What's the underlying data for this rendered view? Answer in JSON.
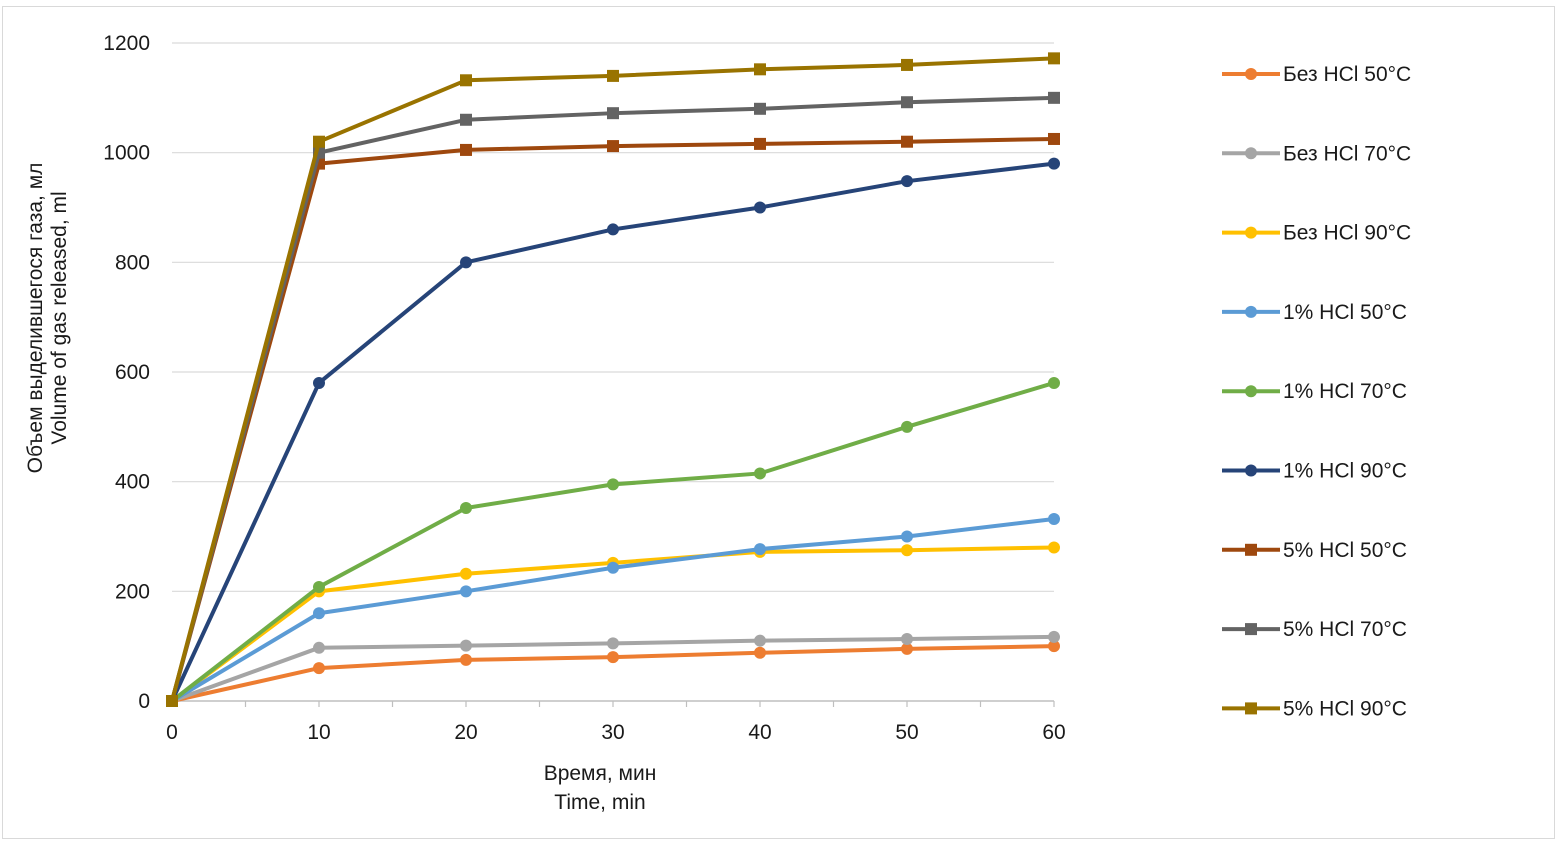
{
  "chart_data": {
    "type": "line",
    "title": "",
    "xlabel": [
      "Время, мин",
      "Time, min"
    ],
    "ylabel": [
      "Объем выделившегося газа, мл",
      "Volume of gas released, ml"
    ],
    "x": [
      0,
      10,
      20,
      30,
      40,
      50,
      60
    ],
    "xlim": [
      0,
      60
    ],
    "ylim": [
      0,
      1200
    ],
    "xticks": [
      0,
      10,
      20,
      30,
      40,
      50,
      60
    ],
    "yticks": [
      0,
      200,
      400,
      600,
      800,
      1000,
      1200
    ],
    "grid": "horizontal",
    "legend_position": "right",
    "series": [
      {
        "name": "Без HCl 50°C",
        "color": "#ed7d31",
        "marker": "circle",
        "values": [
          0,
          60,
          75,
          80,
          88,
          95,
          100
        ]
      },
      {
        "name": "Без HCl 70°C",
        "color": "#a5a5a5",
        "marker": "circle",
        "values": [
          0,
          97,
          101,
          105,
          110,
          113,
          117
        ]
      },
      {
        "name": "Без HCl 90°C",
        "color": "#ffc000",
        "marker": "circle",
        "values": [
          0,
          200,
          232,
          252,
          272,
          275,
          280
        ]
      },
      {
        "name": "1% HCl 50°C",
        "color": "#5b9bd5",
        "marker": "circle",
        "values": [
          0,
          160,
          200,
          243,
          277,
          300,
          332
        ]
      },
      {
        "name": "1% HCl 70°C",
        "color": "#70ad47",
        "marker": "circle",
        "values": [
          0,
          208,
          352,
          395,
          415,
          500,
          580
        ]
      },
      {
        "name": "1% HCl 90°C",
        "color": "#264478",
        "marker": "circle",
        "values": [
          0,
          580,
          800,
          860,
          900,
          948,
          980
        ]
      },
      {
        "name": "5% HCl 50°C",
        "color": "#9e480e",
        "marker": "square",
        "values": [
          0,
          980,
          1005,
          1012,
          1016,
          1020,
          1025
        ]
      },
      {
        "name": "5% HCl 70°C",
        "color": "#636363",
        "marker": "square",
        "values": [
          0,
          1000,
          1060,
          1072,
          1080,
          1092,
          1100
        ]
      },
      {
        "name": "5% HCl 90°C",
        "color": "#997300",
        "marker": "square",
        "values": [
          0,
          1020,
          1132,
          1140,
          1152,
          1160,
          1172
        ]
      }
    ]
  }
}
